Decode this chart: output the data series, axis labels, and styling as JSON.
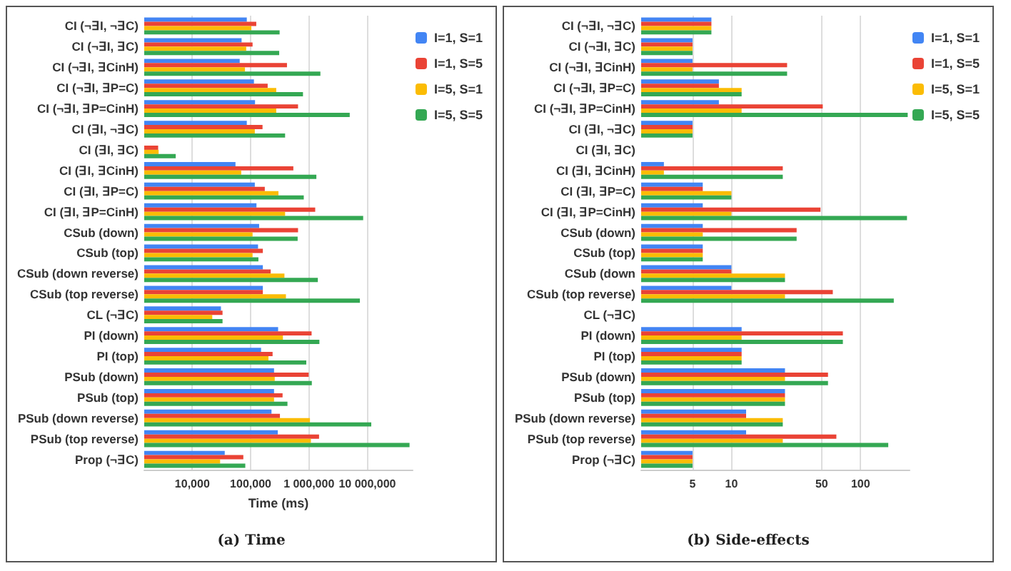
{
  "chart_data": [
    {
      "type": "bar",
      "orientation": "horizontal",
      "xlabel": "Time (ms)",
      "annotations": [
        "(a) Time"
      ],
      "log": "x",
      "grid": "x",
      "legend": "top right",
      "xlim": [
        1500,
        60000000
      ],
      "xticks": [
        {
          "value": 10000,
          "label": "10,000"
        },
        {
          "value": 100000,
          "label": "100,000"
        },
        {
          "value": 1000000,
          "label": "1 000,000"
        },
        {
          "value": 10000000,
          "label": "10 000,000"
        }
      ],
      "categories": [
        "CI (¬∃I, ¬∃C)",
        "CI (¬∃I, ∃C)",
        "CI (¬∃I, ∃CinH)",
        "CI (¬∃I, ∃P=C)",
        "CI (¬∃I, ∃P=CinH)",
        "CI (∃I, ¬∃C)",
        "CI (∃I, ∃C)",
        "CI (∃I, ∃CinH)",
        "CI (∃I, ∃P=C)",
        "CI (∃I, ∃P=CinH)",
        "CSub (down)",
        "CSub (top)",
        "CSub (down reverse)",
        "CSub (top reverse)",
        "CL (¬∃C)",
        "PI (down)",
        "PI (top)",
        "PSub (down)",
        "PSub (top)",
        "PSub (down reverse)",
        "PSub (top reverse)",
        "Prop (¬∃C)"
      ],
      "series": [
        {
          "name": "I=1, S=1",
          "color": "#4285f4",
          "values": [
            86000,
            70000,
            65000,
            114000,
            119000,
            86000,
            null,
            55000,
            118000,
            126000,
            140000,
            134000,
            162000,
            162000,
            31000,
            296000,
            151000,
            252000,
            252000,
            228000,
            292000,
            36000
          ]
        },
        {
          "name": "I=1, S=5",
          "color": "#ea4335",
          "values": [
            125000,
            108000,
            420000,
            196000,
            650000,
            160000,
            2600,
            540000,
            175000,
            1280000,
            650000,
            162000,
            221000,
            162000,
            33000,
            1110000,
            238000,
            990000,
            353000,
            318000,
            1490000,
            75000
          ]
        },
        {
          "name": "I=5, S=1",
          "color": "#fbbc04",
          "values": [
            103000,
            84000,
            80000,
            275000,
            275000,
            118000,
            2650,
            69000,
            300000,
            390000,
            108000,
            108000,
            380000,
            403000,
            22000,
            358000,
            202000,
            259000,
            252000,
            1040000,
            1080000,
            30000
          ]
        },
        {
          "name": "I=5, S=5",
          "color": "#34a853",
          "values": [
            314000,
            309000,
            1570000,
            790000,
            5000000,
            390000,
            5200,
            1340000,
            815000,
            8500000,
            640000,
            136000,
            1420000,
            7460000,
            33000,
            1510000,
            900000,
            1120000,
            428000,
            11700000,
            53000000,
            81000
          ]
        }
      ]
    },
    {
      "type": "bar",
      "orientation": "horizontal",
      "annotations": [
        "(b) Side-effects"
      ],
      "log": "x",
      "grid": "x",
      "legend": "top right",
      "xlim": [
        2,
        240
      ],
      "xticks": [
        5,
        10,
        50,
        100
      ],
      "categories": [
        "CI (¬∃I, ¬∃C)",
        "CI (¬∃I, ∃C)",
        "CI (¬∃I, ∃CinH)",
        "CI (¬∃I, ∃P=C)",
        "CI (¬∃I, ∃P=CinH)",
        "CI (∃I, ¬∃C)",
        "CI (∃I, ∃C)",
        "CI (∃I, ∃CinH)",
        "CI (∃I, ∃P=C)",
        "CI (∃I, ∃P=CinH)",
        "CSub (down)",
        "CSub (top)",
        "CSub (down",
        "CSub (top reverse)",
        "CL (¬∃C)",
        "PI (down)",
        "PI (top)",
        "PSub (down)",
        "PSub (top)",
        "PSub (down reverse)",
        "PSub (top reverse)",
        "Prop (¬∃C)"
      ],
      "series": [
        {
          "name": "I=1, S=1",
          "color": "#4285f4",
          "values": [
            7,
            5,
            5,
            8,
            8,
            5,
            null,
            3,
            6,
            6,
            6,
            6,
            10,
            10,
            null,
            12,
            12,
            26,
            26,
            13,
            13,
            5
          ]
        },
        {
          "name": "I=1, S=5",
          "color": "#ea4335",
          "values": [
            7,
            5,
            27,
            8,
            51,
            5,
            null,
            25,
            6,
            49,
            32,
            6,
            10,
            61,
            null,
            73,
            12,
            56,
            26,
            13,
            65,
            5
          ]
        },
        {
          "name": "I=5, S=1",
          "color": "#fbbc04",
          "values": [
            7,
            5,
            5,
            12,
            12,
            5,
            null,
            3,
            10,
            10,
            6,
            6,
            26,
            26,
            null,
            12,
            12,
            26,
            26,
            25,
            25,
            5
          ]
        },
        {
          "name": "I=5, S=5",
          "color": "#34a853",
          "values": [
            7,
            5,
            27,
            12,
            232,
            5,
            null,
            25,
            10,
            229,
            32,
            6,
            26,
            181,
            null,
            73,
            12,
            56,
            26,
            25,
            164,
            5
          ]
        }
      ]
    }
  ]
}
